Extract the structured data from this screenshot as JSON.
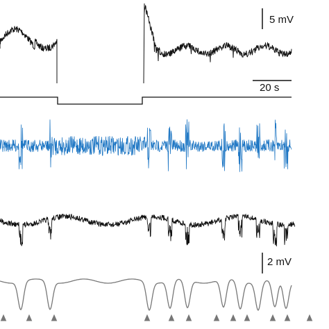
{
  "scale_bars": {
    "top_voltage": "5 mV",
    "time": "20 s",
    "bottom_voltage": "2 mV"
  }
}
